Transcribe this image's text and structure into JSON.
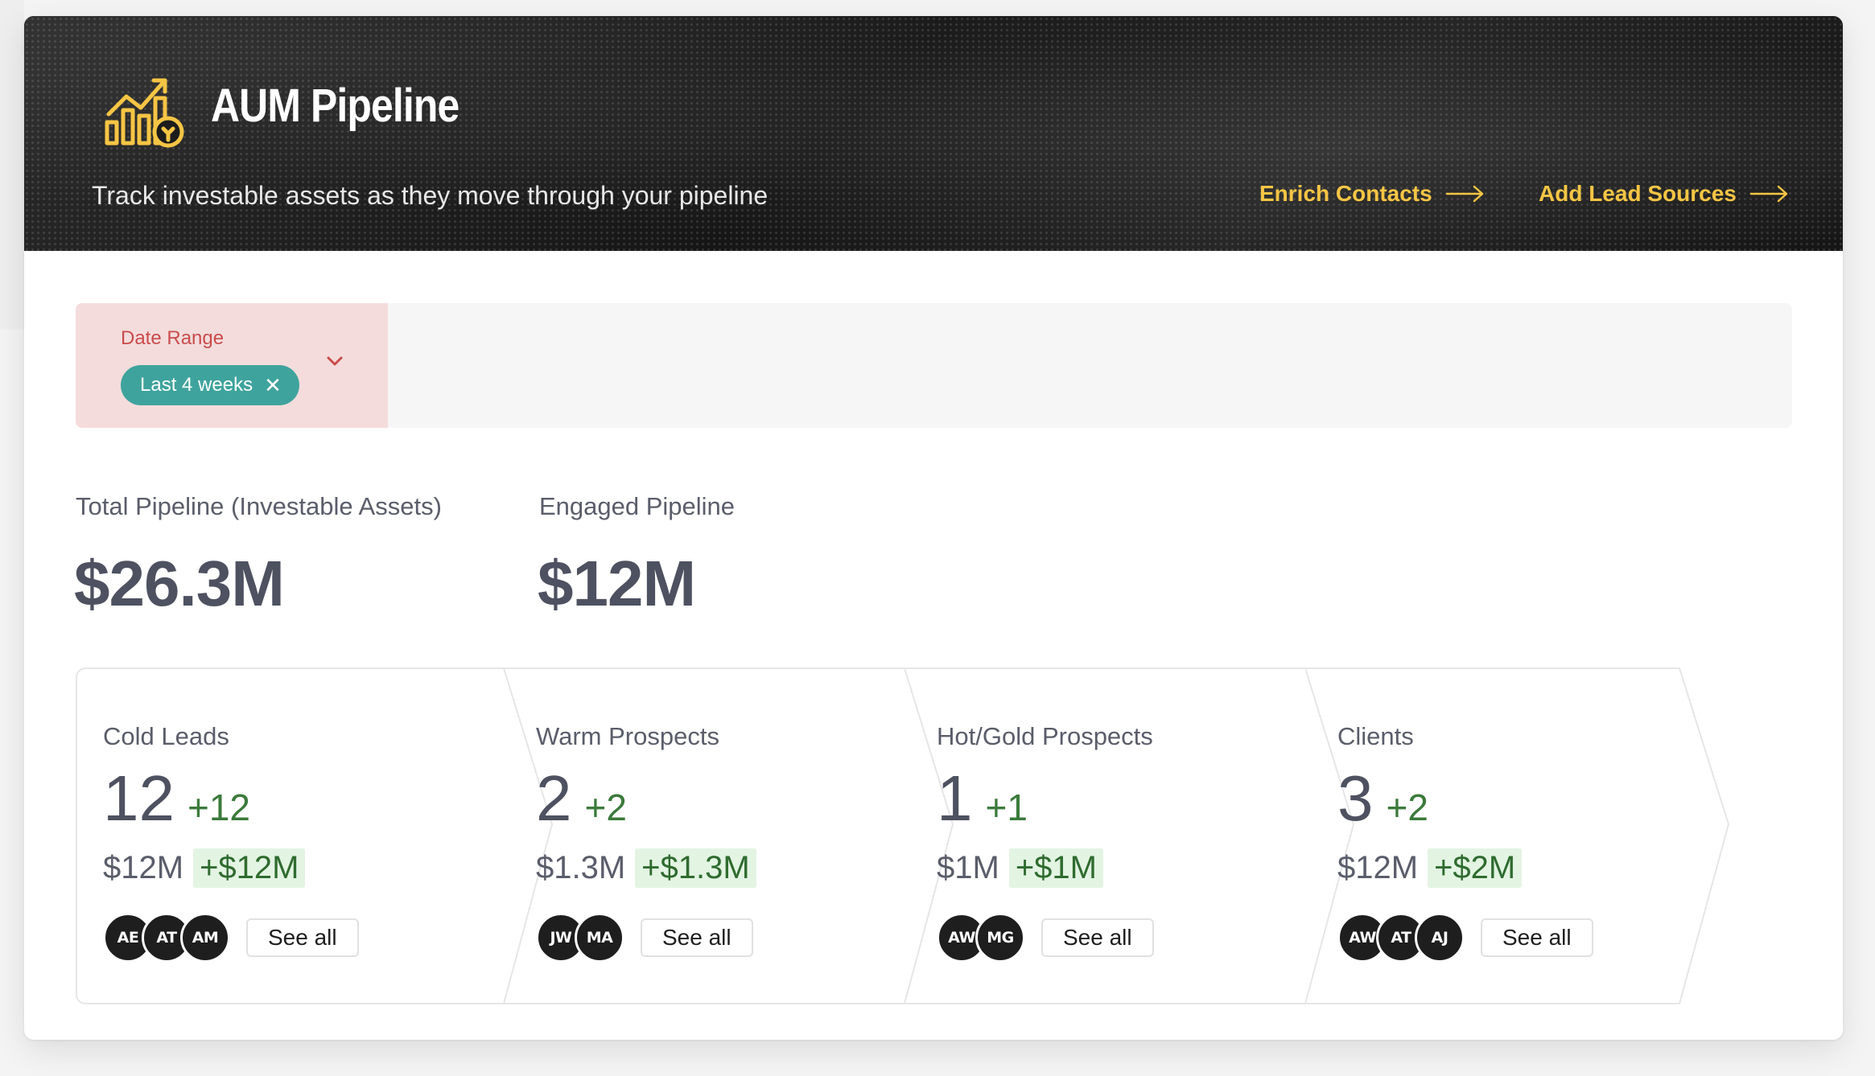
{
  "header": {
    "title": "AUM Pipeline",
    "subtitle": "Track investable assets as they move through your pipeline",
    "links": [
      {
        "label": "Enrich Contacts"
      },
      {
        "label": "Add Lead Sources"
      }
    ],
    "accent_color": "#f6c544"
  },
  "filters": {
    "date_range_label": "Date Range",
    "date_range_value": "Last 4 weeks",
    "chip_color": "#3fa39d"
  },
  "metrics": [
    {
      "label": "Total Pipeline (Investable Assets)",
      "value": "$26.3M"
    },
    {
      "label": "Engaged Pipeline",
      "value": "$12M"
    }
  ],
  "stages": [
    {
      "name": "Cold Leads",
      "count": "12",
      "count_delta": "+12",
      "amount": "$12M",
      "amount_delta": "+$12M",
      "avatars": [
        "AE",
        "AT",
        "AM"
      ],
      "see_all": "See all"
    },
    {
      "name": "Warm Prospects",
      "count": "2",
      "count_delta": "+2",
      "amount": "$1.3M",
      "amount_delta": "+$1.3M",
      "avatars": [
        "JW",
        "MA"
      ],
      "see_all": "See all"
    },
    {
      "name": "Hot/Gold Prospects",
      "count": "1",
      "count_delta": "+1",
      "amount": "$1M",
      "amount_delta": "+$1M",
      "avatars": [
        "AW",
        "MG"
      ],
      "see_all": "See all"
    },
    {
      "name": "Clients",
      "count": "3",
      "count_delta": "+2",
      "amount": "$12M",
      "amount_delta": "+$2M",
      "avatars": [
        "AW",
        "AT",
        "AJ"
      ],
      "see_all": "See all"
    }
  ]
}
